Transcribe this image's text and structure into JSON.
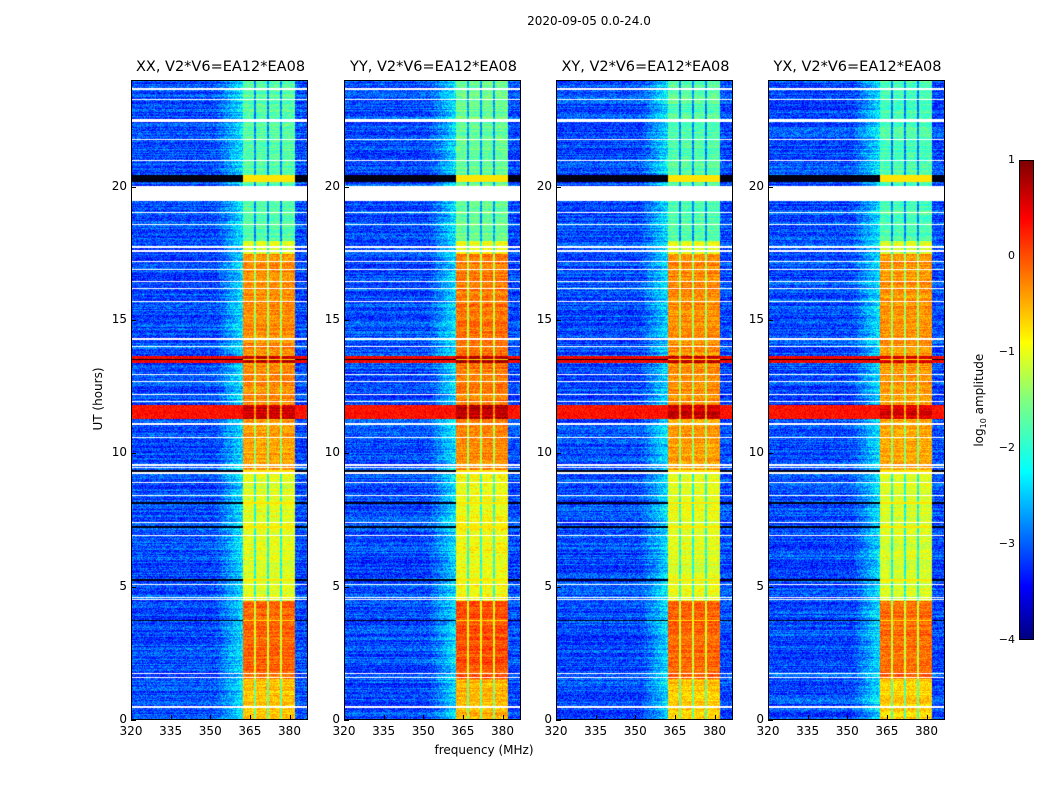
{
  "chart_data": {
    "type": "heatmap",
    "title": "2020-09-05 0.0-24.0",
    "xlabel": "frequency (MHz)",
    "ylabel": "UT (hours)",
    "xlim": [
      320,
      387
    ],
    "ylim": [
      0,
      24
    ],
    "xticks": [
      320,
      335,
      350,
      365,
      380
    ],
    "yticks": [
      0,
      5,
      10,
      15,
      20
    ],
    "panels": [
      {
        "title": "XX, V2*V6=EA12*EA08",
        "band_mhz": [
          362.5,
          382.5
        ],
        "band_offset": 0
      },
      {
        "title": "YY, V2*V6=EA12*EA08",
        "band_mhz": [
          362.5,
          382.5
        ],
        "band_offset": 0.1
      },
      {
        "title": "XY, V2*V6=EA12*EA08",
        "band_mhz": [
          362.5,
          382.5
        ],
        "band_offset": 0
      },
      {
        "title": "YX, V2*V6=EA12*EA08",
        "band_mhz": [
          362.5,
          382.5
        ],
        "band_offset": -0.05
      }
    ],
    "channel_gaps_mhz": [
      367,
      372,
      377
    ],
    "background_log_amplitude": -3.0,
    "band_segments": [
      {
        "t": [
          0,
          1.5
        ],
        "level": -0.6
      },
      {
        "t": [
          1.5,
          4.45
        ],
        "level": -0.1
      },
      {
        "t": [
          4.45,
          9.3
        ],
        "level": -1.0
      },
      {
        "t": [
          9.3,
          11.3
        ],
        "level": -0.4
      },
      {
        "t": [
          11.3,
          11.8
        ],
        "level": 0.6,
        "full_row": true
      },
      {
        "t": [
          11.8,
          13.4
        ],
        "level": -0.3
      },
      {
        "t": [
          13.4,
          13.65
        ],
        "level": 0.7,
        "full_row": true
      },
      {
        "t": [
          13.65,
          17.5
        ],
        "level": -0.3
      },
      {
        "t": [
          17.5,
          18.0
        ],
        "level": -1.0
      },
      {
        "t": [
          18.0,
          24
        ],
        "level": -1.7
      }
    ],
    "flagged_rows_hours": [
      0.45,
      1.55,
      1.7,
      4.5,
      4.56,
      5.05,
      6.9,
      7.4,
      8.4,
      8.9,
      9.25,
      9.45,
      9.55,
      10.6,
      11.1,
      11.95,
      12.2,
      12.7,
      12.95,
      14.0,
      14.3,
      15.7,
      16.2,
      16.45,
      16.9,
      17.2,
      17.6,
      17.75,
      18.6,
      19.05,
      21.0,
      21.8,
      22.5,
      22.55,
      23.3,
      23.7
    ],
    "flagged_blocks_hours": [
      [
        19.5,
        20.05
      ]
    ],
    "dark_rows_hours": [
      [
        20.2,
        20.45
      ],
      [
        9.3,
        9.35
      ],
      [
        8.1,
        8.15
      ],
      [
        7.2,
        7.25
      ],
      [
        5.2,
        5.25
      ],
      [
        3.7,
        3.74
      ],
      [
        13.5,
        13.55
      ]
    ],
    "colorbar": {
      "label": "log10 amplitude",
      "label_main": "log",
      "label_sub": "10",
      "label_rest": " amplitude",
      "range": [
        -4,
        1
      ],
      "ticks": [
        "1",
        "0",
        "−1",
        "−2",
        "−3",
        "−4"
      ]
    }
  }
}
